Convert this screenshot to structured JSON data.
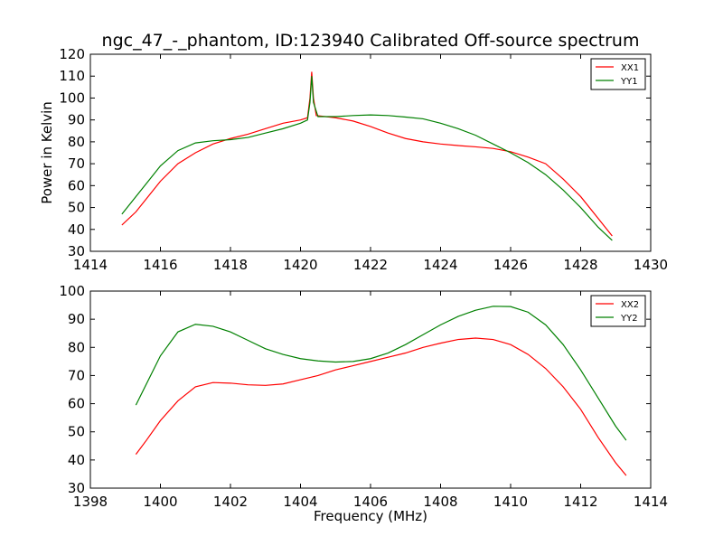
{
  "figure": {
    "title": "ngc_47_-_phantom, ID:123940 Calibrated Off-source spectrum"
  },
  "chart_data": [
    {
      "type": "line",
      "title": "ngc_47_-_phantom, ID:123940 Calibrated Off-source spectrum",
      "xlabel": "",
      "ylabel": "Power in Kelvin",
      "xlim": [
        1414,
        1430
      ],
      "ylim": [
        30,
        120
      ],
      "xticks": [
        1414,
        1416,
        1418,
        1420,
        1422,
        1424,
        1426,
        1428,
        1430
      ],
      "yticks": [
        30,
        40,
        50,
        60,
        70,
        80,
        90,
        100,
        110,
        120
      ],
      "grid": false,
      "legend": "top-right",
      "series": [
        {
          "name": "XX1",
          "color": "#ff0000",
          "points": [
            [
              1414.9,
              42
            ],
            [
              1415.3,
              48
            ],
            [
              1415.7,
              56
            ],
            [
              1416.0,
              62
            ],
            [
              1416.5,
              70
            ],
            [
              1417.0,
              75
            ],
            [
              1417.5,
              79
            ],
            [
              1418.0,
              81.5
            ],
            [
              1418.5,
              83.5
            ],
            [
              1419.0,
              86
            ],
            [
              1419.5,
              88.5
            ],
            [
              1420.0,
              90
            ],
            [
              1420.2,
              91
            ],
            [
              1420.27,
              100
            ],
            [
              1420.32,
              112
            ],
            [
              1420.37,
              100
            ],
            [
              1420.45,
              92
            ],
            [
              1421.0,
              91
            ],
            [
              1421.5,
              89.5
            ],
            [
              1422.0,
              87
            ],
            [
              1422.5,
              84
            ],
            [
              1423.0,
              81.5
            ],
            [
              1423.5,
              80
            ],
            [
              1424.0,
              79
            ],
            [
              1424.5,
              78.3
            ],
            [
              1425.0,
              77.7
            ],
            [
              1425.5,
              77
            ],
            [
              1426.0,
              75.5
            ],
            [
              1426.5,
              73
            ],
            [
              1427.0,
              70
            ],
            [
              1427.5,
              63
            ],
            [
              1428.0,
              55
            ],
            [
              1428.5,
              45
            ],
            [
              1428.9,
              37
            ]
          ]
        },
        {
          "name": "YY1",
          "color": "#008000",
          "points": [
            [
              1414.9,
              47
            ],
            [
              1415.3,
              55
            ],
            [
              1415.7,
              63
            ],
            [
              1416.0,
              69
            ],
            [
              1416.5,
              76
            ],
            [
              1417.0,
              79.5
            ],
            [
              1417.5,
              80.5
            ],
            [
              1418.0,
              81
            ],
            [
              1418.5,
              82
            ],
            [
              1419.0,
              84
            ],
            [
              1419.5,
              86
            ],
            [
              1420.0,
              88.5
            ],
            [
              1420.2,
              90
            ],
            [
              1420.27,
              98
            ],
            [
              1420.32,
              110
            ],
            [
              1420.37,
              98
            ],
            [
              1420.5,
              91.5
            ],
            [
              1421.0,
              91.5
            ],
            [
              1421.5,
              92
            ],
            [
              1422.0,
              92.3
            ],
            [
              1422.5,
              92
            ],
            [
              1423.0,
              91.3
            ],
            [
              1423.5,
              90.5
            ],
            [
              1424.0,
              88.5
            ],
            [
              1424.5,
              86
            ],
            [
              1425.0,
              83
            ],
            [
              1425.5,
              79
            ],
            [
              1426.0,
              75
            ],
            [
              1426.5,
              70.5
            ],
            [
              1427.0,
              65
            ],
            [
              1427.5,
              58
            ],
            [
              1428.0,
              50
            ],
            [
              1428.5,
              41
            ],
            [
              1428.9,
              35
            ]
          ]
        }
      ]
    },
    {
      "type": "line",
      "title": "",
      "xlabel": "Frequency (MHz)",
      "ylabel": "",
      "xlim": [
        1398,
        1414
      ],
      "ylim": [
        30,
        100
      ],
      "xticks": [
        1398,
        1400,
        1402,
        1404,
        1406,
        1408,
        1410,
        1412,
        1414
      ],
      "yticks": [
        30,
        40,
        50,
        60,
        70,
        80,
        90,
        100
      ],
      "grid": false,
      "legend": "top-right",
      "series": [
        {
          "name": "XX2",
          "color": "#ff0000",
          "points": [
            [
              1399.3,
              42
            ],
            [
              1399.6,
              47
            ],
            [
              1400.0,
              54
            ],
            [
              1400.5,
              61
            ],
            [
              1401.0,
              66
            ],
            [
              1401.5,
              67.5
            ],
            [
              1402.0,
              67.3
            ],
            [
              1402.5,
              66.7
            ],
            [
              1403.0,
              66.5
            ],
            [
              1403.5,
              67
            ],
            [
              1404.0,
              68.5
            ],
            [
              1404.5,
              70
            ],
            [
              1405.0,
              72
            ],
            [
              1405.5,
              73.5
            ],
            [
              1406.0,
              75
            ],
            [
              1406.5,
              76.5
            ],
            [
              1407.0,
              78
            ],
            [
              1407.5,
              80
            ],
            [
              1408.0,
              81.5
            ],
            [
              1408.5,
              82.8
            ],
            [
              1409.0,
              83.3
            ],
            [
              1409.5,
              82.8
            ],
            [
              1410.0,
              81
            ],
            [
              1410.5,
              77.5
            ],
            [
              1411.0,
              72.5
            ],
            [
              1411.5,
              66
            ],
            [
              1412.0,
              58
            ],
            [
              1412.5,
              48
            ],
            [
              1413.0,
              39
            ],
            [
              1413.3,
              34.5
            ]
          ]
        },
        {
          "name": "YY2",
          "color": "#008000",
          "points": [
            [
              1399.3,
              59.5
            ],
            [
              1399.6,
              67
            ],
            [
              1400.0,
              77
            ],
            [
              1400.5,
              85.5
            ],
            [
              1401.0,
              88.2
            ],
            [
              1401.5,
              87.5
            ],
            [
              1402.0,
              85.5
            ],
            [
              1402.5,
              82.5
            ],
            [
              1403.0,
              79.5
            ],
            [
              1403.5,
              77.5
            ],
            [
              1404.0,
              76
            ],
            [
              1404.5,
              75.2
            ],
            [
              1405.0,
              74.8
            ],
            [
              1405.5,
              75
            ],
            [
              1406.0,
              76
            ],
            [
              1406.5,
              78
            ],
            [
              1407.0,
              81
            ],
            [
              1407.5,
              84.5
            ],
            [
              1408.0,
              88
            ],
            [
              1408.5,
              91
            ],
            [
              1409.0,
              93.2
            ],
            [
              1409.5,
              94.6
            ],
            [
              1410.0,
              94.5
            ],
            [
              1410.5,
              92.5
            ],
            [
              1411.0,
              88
            ],
            [
              1411.5,
              81
            ],
            [
              1412.0,
              72
            ],
            [
              1412.5,
              62
            ],
            [
              1413.0,
              52
            ],
            [
              1413.3,
              47
            ]
          ]
        }
      ]
    }
  ]
}
